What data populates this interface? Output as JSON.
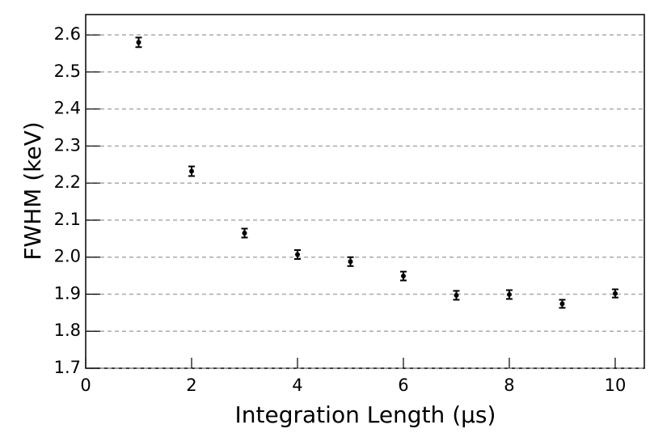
{
  "chart_data": {
    "type": "errorbar",
    "x_label": "Integration Length (µs)",
    "y_label": "FWHM (keV)",
    "x": [
      1,
      2,
      3,
      4,
      5,
      6,
      7,
      8,
      9,
      10
    ],
    "values": [
      2.58,
      2.232,
      2.065,
      2.007,
      1.988,
      1.949,
      1.897,
      1.899,
      1.874,
      1.902
    ],
    "errors": [
      0.013,
      0.013,
      0.012,
      0.012,
      0.012,
      0.012,
      0.012,
      0.012,
      0.011,
      0.011
    ],
    "color": "#000000",
    "xlim": [
      0,
      10.55
    ],
    "ylim": [
      1.7,
      2.655
    ],
    "xticks": [
      0,
      2,
      4,
      6,
      8,
      10
    ],
    "yticks": [
      1.7,
      1.8,
      1.9,
      {
        "value": 2,
        "label": "2.0"
      },
      2.1,
      2.2,
      2.3,
      2.4,
      2.5,
      2.6
    ],
    "grid": true
  }
}
